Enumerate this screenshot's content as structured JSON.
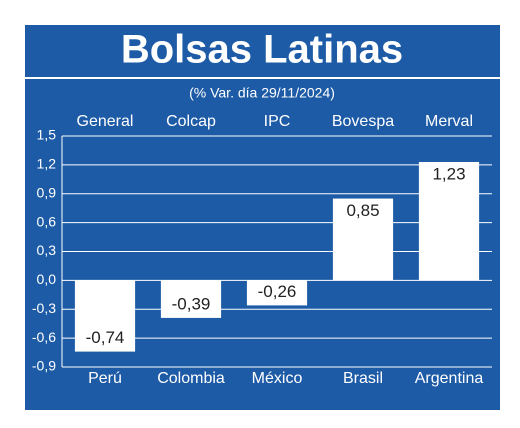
{
  "chart_data": {
    "type": "bar",
    "title": "Bolsas Latinas",
    "subtitle": "(% Var. día 29/11/2024)",
    "index_names": [
      "General",
      "Colcap",
      "IPC",
      "Bovespa",
      "Merval"
    ],
    "categories": [
      "Perú",
      "Colombia",
      "México",
      "Brasil",
      "Argentina"
    ],
    "values": [
      -0.74,
      -0.39,
      -0.26,
      0.85,
      1.23
    ],
    "value_labels": [
      "-0,74",
      "-0,39",
      "-0,26",
      "0,85",
      "1,23"
    ],
    "color": "#ffffff",
    "background": "#1d5ba6",
    "ylim": [
      -0.9,
      1.5
    ],
    "yticks": [
      {
        "value": -0.9,
        "label": "-0,9"
      },
      {
        "value": -0.6,
        "label": "-0,6"
      },
      {
        "value": -0.3,
        "label": "-0,3"
      },
      {
        "value": 0,
        "label": "0,0"
      },
      {
        "value": 0.3,
        "label": "0,3"
      },
      {
        "value": 0.6,
        "label": "0,6"
      },
      {
        "value": 0.9,
        "label": "0,9"
      },
      {
        "value": 1.2,
        "label": "1,2"
      },
      {
        "value": 1.5,
        "label": "1,5"
      }
    ],
    "grid": true
  }
}
